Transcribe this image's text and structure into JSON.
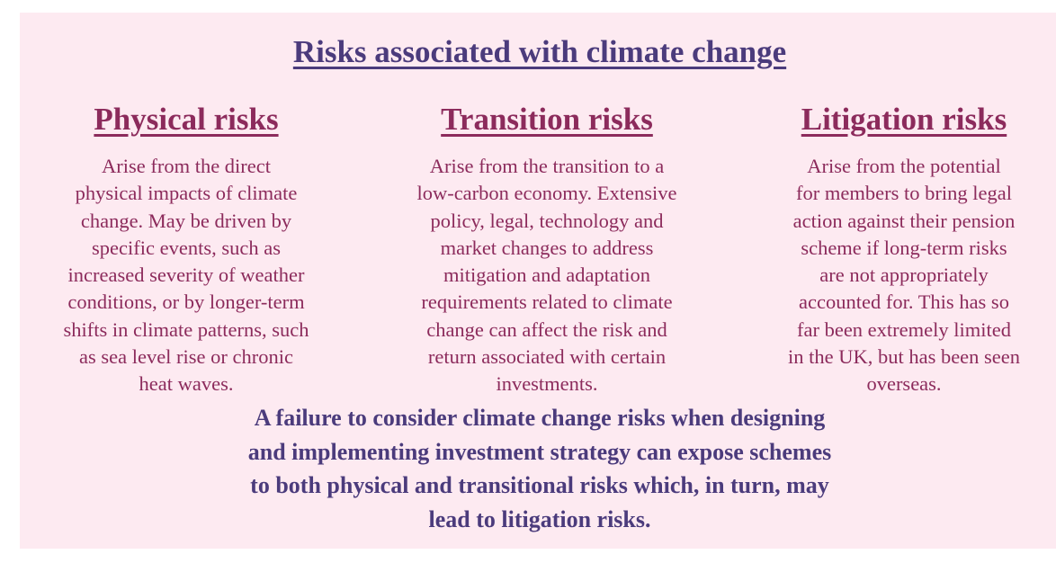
{
  "title": "Risks associated with climate change",
  "columns": [
    {
      "heading": "Physical risks",
      "lines": [
        "Arise from the direct",
        "physical impacts of climate",
        "change. May be driven by",
        "specific events, such as",
        "increased severity of weather",
        "conditions, or by longer-term",
        "shifts in climate patterns, such",
        "as sea level rise or chronic",
        "heat waves."
      ]
    },
    {
      "heading": "Transition risks",
      "lines": [
        "Arise from the transition to a",
        "low-carbon economy. Extensive",
        "policy, legal, technology and",
        "market changes to address",
        "mitigation and adaptation",
        "requirements related to climate",
        "change can affect the risk and",
        "return associated with certain",
        "investments."
      ]
    },
    {
      "heading": "Litigation risks",
      "lines": [
        "Arise from the potential",
        "for members to bring legal",
        "action against their pension",
        "scheme if long-term risks",
        "are not appropriately",
        "accounted for. This has so",
        "far been extremely limited",
        "in the UK, but has been seen",
        "overseas."
      ]
    }
  ],
  "conclusion": [
    "A failure to consider climate change risks when designing",
    "and implementing investment strategy can expose schemes",
    "to both physical and transitional risks which, in turn, may",
    "lead to litigation risks."
  ]
}
